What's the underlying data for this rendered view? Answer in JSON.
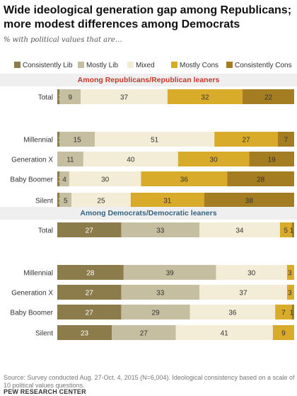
{
  "title": "Wide ideological generation gap among Republicans; more modest differences among Democrats",
  "subtitle": "% with political values that are…",
  "source": "Source: Survey conducted Aug. 27-Oct. 4, 2015 (N=6,004). Ideological consistency based on a scale of 10 political values questions.",
  "brand": "PEW RESEARCH CENTER",
  "colors": {
    "consistently_lib": "#8c7b4b",
    "mostly_lib": "#c6bea0",
    "mixed": "#f3ecd6",
    "mostly_cons": "#d9ab2a",
    "consistently_cons": "#a47c22",
    "republican_header": "#c0392b",
    "democrat_header": "#35617f",
    "band": "#efefef"
  },
  "chart_data": {
    "type": "bar",
    "stacked": true,
    "orientation": "horizontal",
    "legend": [
      "Consistently Lib",
      "Mostly Lib",
      "Mixed",
      "Mostly Cons",
      "Consistently Cons"
    ],
    "groups": [
      {
        "name": "Among Republicans/Republican leaners",
        "rows": [
          {
            "label": "Total",
            "values": [
              1,
              9,
              37,
              32,
              22
            ]
          },
          {
            "label": "Millennial",
            "values": [
              1,
              15,
              51,
              27,
              7
            ]
          },
          {
            "label": "Generation X",
            "values": [
              0,
              11,
              40,
              30,
              19
            ]
          },
          {
            "label": "Baby Boomer",
            "values": [
              1,
              4,
              30,
              36,
              28
            ],
            "value_labels": [
              "1",
              "4",
              "30",
              "36",
              "28"
            ]
          },
          {
            "label": "Silent",
            "values": [
              1,
              5,
              25,
              31,
              38
            ]
          }
        ]
      },
      {
        "name": "Among Democrats/Democratic leaners",
        "rows": [
          {
            "label": "Total",
            "values": [
              27,
              33,
              34,
              5,
              1
            ]
          },
          {
            "label": "Millennial",
            "values": [
              28,
              39,
              30,
              3,
              0
            ]
          },
          {
            "label": "Generation X",
            "values": [
              27,
              33,
              37,
              3,
              0
            ]
          },
          {
            "label": "Baby Boomer",
            "values": [
              27,
              29,
              36,
              7,
              1
            ]
          },
          {
            "label": "Silent",
            "values": [
              23,
              27,
              41,
              9,
              0
            ]
          }
        ]
      }
    ]
  }
}
